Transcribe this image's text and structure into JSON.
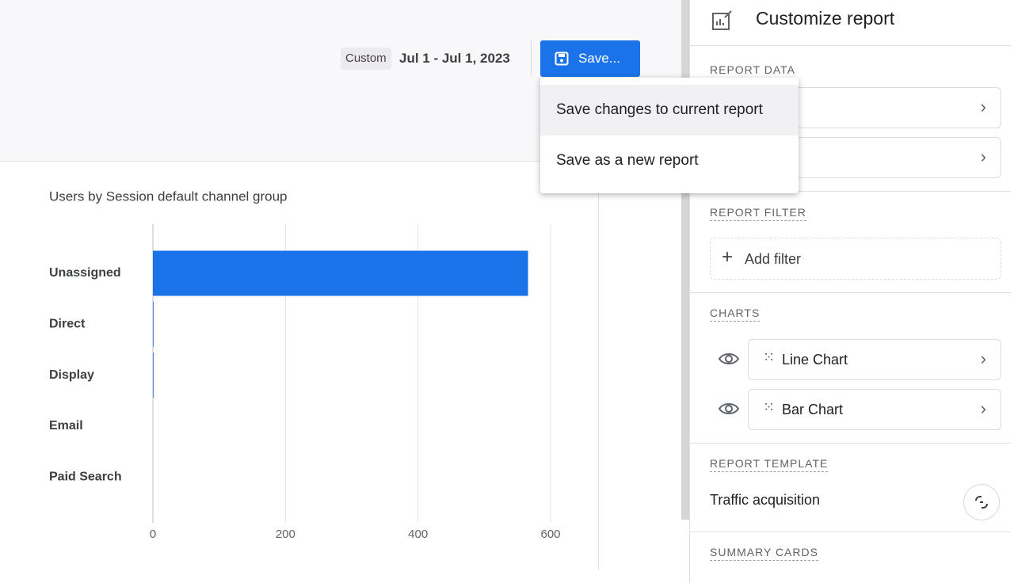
{
  "header": {
    "date_chip": "Custom",
    "date_range": "Jul 1 - Jul 1, 2023",
    "save_button": "Save..."
  },
  "save_menu": {
    "items": [
      "Save changes to current report",
      "Save as a new report"
    ]
  },
  "chart_data": {
    "type": "bar",
    "orientation": "horizontal",
    "title": "Users by Session default channel group",
    "categories": [
      "Unassigned",
      "Direct",
      "Display",
      "Email",
      "Paid Search"
    ],
    "values": [
      566,
      1,
      1,
      0,
      0
    ],
    "color": "#1a73e8",
    "xlim": [
      0,
      600
    ],
    "xticks": [
      0,
      200,
      400,
      600
    ],
    "grid": true
  },
  "panel": {
    "title": "Customize report",
    "report_data": "REPORT DATA",
    "report_filter": "REPORT FILTER",
    "add_filter": "Add filter",
    "charts": "CHARTS",
    "chart_items": [
      "Line Chart",
      "Bar Chart"
    ],
    "report_template": "REPORT TEMPLATE",
    "template_name": "Traffic acquisition",
    "summary_cards": "SUMMARY CARDS"
  }
}
